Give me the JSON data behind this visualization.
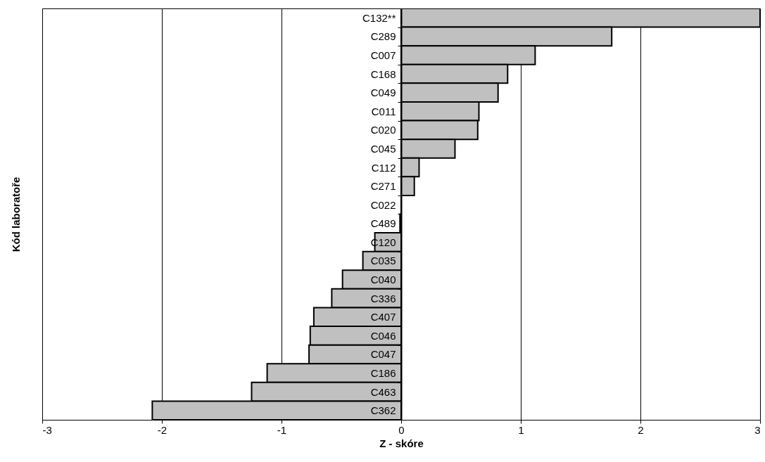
{
  "chart_data": {
    "type": "bar",
    "orientation": "horizontal",
    "xlabel": "Z - skóre",
    "ylabel": "Kód laboratoře",
    "categories": [
      "C132**",
      "C289",
      "C007",
      "C168",
      "C049",
      "C011",
      "C020",
      "C045",
      "C112",
      "C271",
      "C022",
      "C489",
      "C120",
      "C035",
      "C040",
      "C336",
      "C407",
      "C046",
      "C047",
      "C186",
      "C463",
      "C362"
    ],
    "values": [
      3,
      1.76,
      1.12,
      0.89,
      0.81,
      0.65,
      0.64,
      0.45,
      0.15,
      0.11,
      0,
      -0.01,
      -0.22,
      -0.32,
      -0.49,
      -0.58,
      -0.73,
      -0.76,
      -0.77,
      -1.12,
      -1.25,
      -2.08
    ],
    "color": "#c0c0c0",
    "xlim": [
      -3,
      3
    ],
    "xticks": [
      -3,
      -2,
      -1,
      0,
      1,
      2,
      3
    ],
    "grid": "x"
  }
}
